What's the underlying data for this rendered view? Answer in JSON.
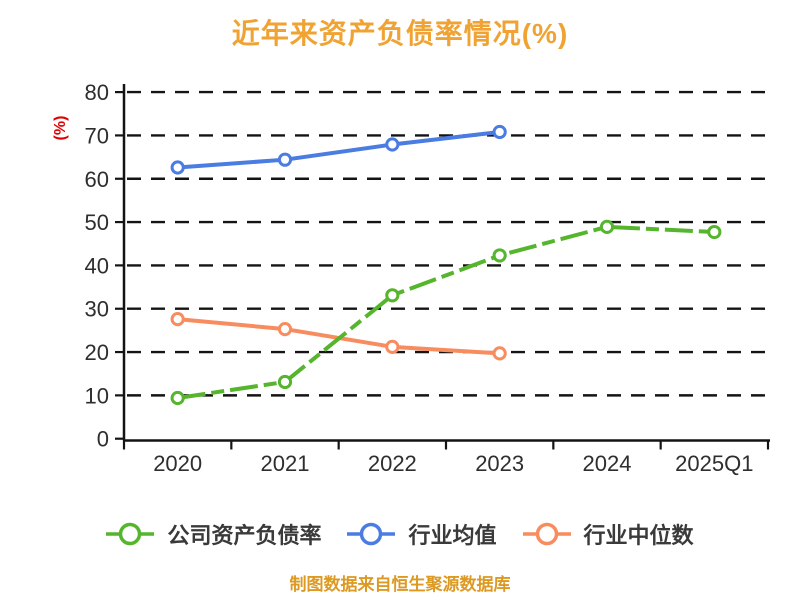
{
  "source_note": "制图数据来自恒生聚源数据库",
  "colors": {
    "background": "#ffffff",
    "title": "#f0a332",
    "ylabel": "#e00000",
    "axis_text": "#2e2e2e",
    "grid": "#141414",
    "legend_text": "#3a3a3a",
    "source_note": "#dd9a22",
    "marker_fill": "#ffffff"
  },
  "chart_data": {
    "type": "line",
    "title": "近年来资产负债率情况(%)",
    "xlabel": "",
    "ylabel": "(%)",
    "ylim": [
      0,
      80
    ],
    "y_ticks": [
      0,
      10,
      20,
      30,
      40,
      50,
      60,
      70,
      80
    ],
    "categories": [
      "2020",
      "2021",
      "2022",
      "2023",
      "2024",
      "2025Q1"
    ],
    "grid": "horizontal-dashed",
    "legend_position": "bottom",
    "series": [
      {
        "name": "公司资产负债率",
        "color": "#55b52c",
        "style": "dashed",
        "values": [
          9.4,
          13.1,
          33.1,
          42.3,
          48.9,
          47.7
        ]
      },
      {
        "name": "行业均值",
        "color": "#4a7ce2",
        "style": "solid",
        "values": [
          62.6,
          64.4,
          67.9,
          70.8,
          null,
          null
        ]
      },
      {
        "name": "行业中位数",
        "color": "#f78c5f",
        "style": "solid",
        "values": [
          27.6,
          25.3,
          21.2,
          19.7,
          null,
          null
        ]
      }
    ]
  }
}
